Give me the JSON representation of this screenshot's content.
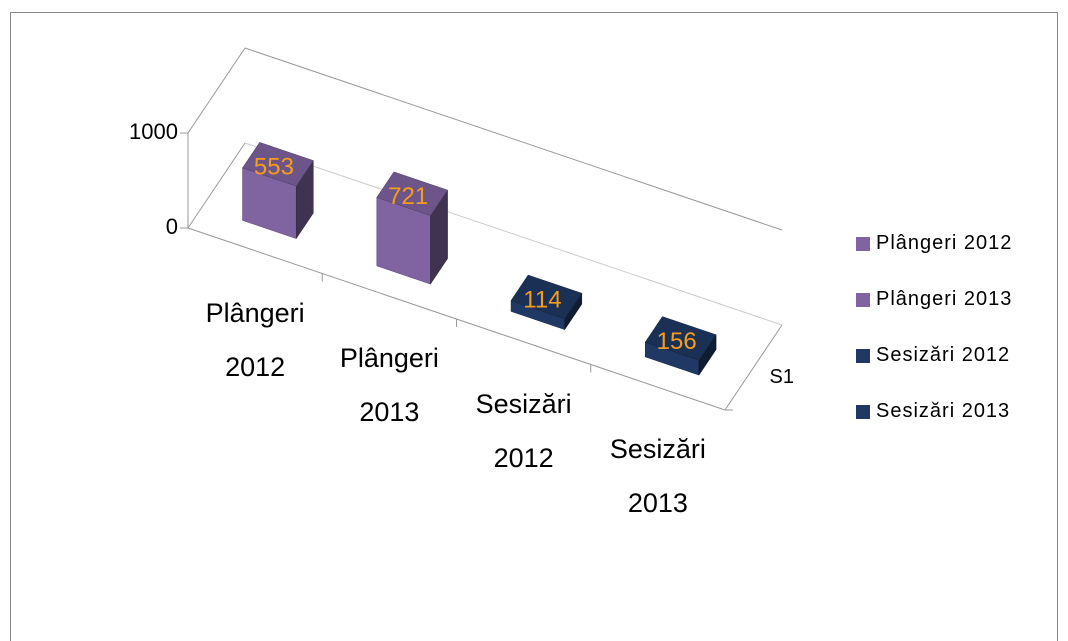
{
  "chart_data": {
    "type": "bar3d",
    "categories": [
      "S1"
    ],
    "series": [
      {
        "name": "Plângeri 2012",
        "color": "#8064a2",
        "values": [
          553
        ]
      },
      {
        "name": "Plângeri 2013",
        "color": "#8064a2",
        "values": [
          721
        ]
      },
      {
        "name": "Sesizări 2012",
        "color": "#1f3864",
        "values": [
          114
        ]
      },
      {
        "name": "Sesizări 2013",
        "color": "#1f3864",
        "values": [
          156
        ]
      }
    ],
    "ylim": [
      0,
      1000
    ],
    "yticks": [
      0,
      1000
    ],
    "label_color": "#f59d1a",
    "legend": "right"
  }
}
